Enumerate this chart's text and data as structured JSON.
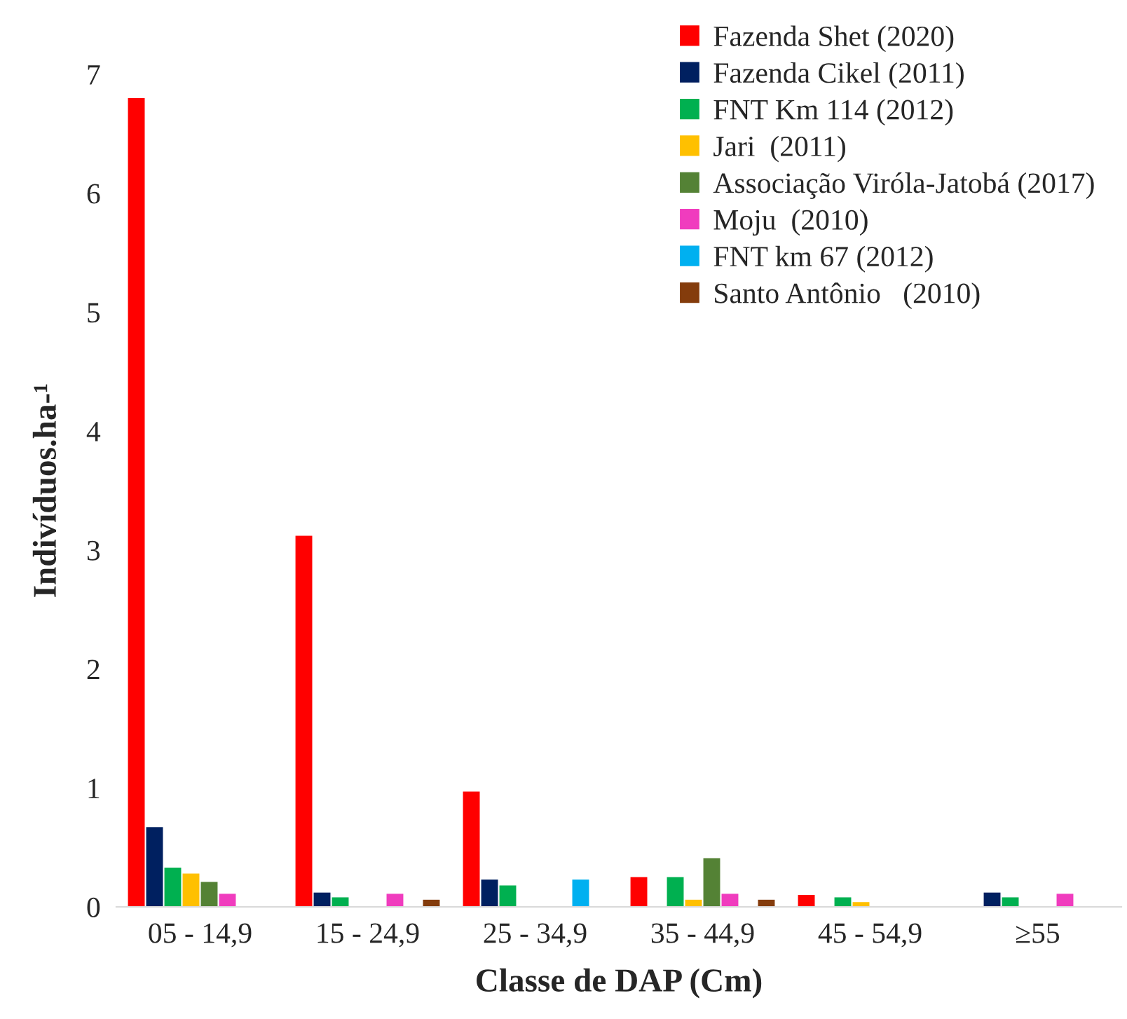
{
  "chart_data": {
    "type": "bar",
    "xlabel": "Classe de DAP (Cm)",
    "ylabel": "Indivíduos.ha-¹",
    "categories": [
      "05 - 14,9",
      "15 - 24,9",
      "25 - 34,9",
      "35 - 44,9",
      "45 - 54,9",
      "≥55"
    ],
    "series": [
      {
        "name": "Fazenda Shet (2020)",
        "color": "#ff0000",
        "values": [
          6.8,
          3.12,
          0.97,
          0.25,
          0.1,
          null
        ]
      },
      {
        "name": "Fazenda Cikel (2011)",
        "color": "#002060",
        "values": [
          0.67,
          0.12,
          0.23,
          null,
          null,
          0.12
        ]
      },
      {
        "name": "FNT Km 114 (2012)",
        "color": "#00b050",
        "values": [
          0.33,
          0.08,
          0.18,
          0.25,
          0.08,
          0.08
        ]
      },
      {
        "name": "Jari  (2011)",
        "color": "#ffc000",
        "values": [
          0.28,
          null,
          null,
          0.06,
          0.04,
          null
        ]
      },
      {
        "name": "Associação Viróla-Jatobá (2017)",
        "color": "#548235",
        "values": [
          0.21,
          null,
          null,
          0.41,
          null,
          null
        ]
      },
      {
        "name": "Moju  (2010)",
        "color": "#f03cbe",
        "values": [
          0.11,
          0.11,
          null,
          0.11,
          null,
          0.11
        ]
      },
      {
        "name": "FNT km 67 (2012)",
        "color": "#00b0f0",
        "values": [
          null,
          null,
          0.23,
          null,
          null,
          null
        ]
      },
      {
        "name": "Santo Antônio   (2010)",
        "color": "#843c0c",
        "values": [
          null,
          0.06,
          null,
          0.06,
          null,
          null
        ]
      }
    ],
    "ylim": [
      0,
      7
    ],
    "yticks": [
      0,
      1,
      2,
      3,
      4,
      5,
      6,
      7
    ],
    "grid": false,
    "legend": "top right"
  }
}
